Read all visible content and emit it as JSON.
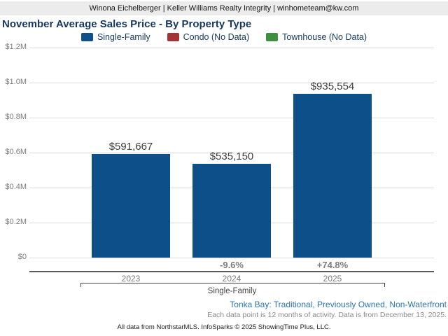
{
  "header": {
    "contact_line": "Winona Eichelberger | Keller Williams Realty Integrity | winhometeam@kw.com"
  },
  "title": "November Average Sales Price - By Property Type",
  "legend": [
    {
      "label": "Single-Family",
      "color": "#0d4f88"
    },
    {
      "label": "Condo (No Data)",
      "color": "#a23337"
    },
    {
      "label": "Townhouse (No Data)",
      "color": "#3f8f41"
    }
  ],
  "chart_data": {
    "type": "bar",
    "title": "November Average Sales Price - By Property Type",
    "categories": [
      "2023",
      "2024",
      "2025"
    ],
    "series": [
      {
        "name": "Single-Family",
        "values": [
          591667,
          535150,
          935554
        ],
        "color": "#0d4f88"
      },
      {
        "name": "Condo",
        "values": [
          null,
          null,
          null
        ],
        "color": "#a23337",
        "note": "No Data"
      },
      {
        "name": "Townhouse",
        "values": [
          null,
          null,
          null
        ],
        "color": "#3f8f41",
        "note": "No Data"
      }
    ],
    "bar_value_labels": [
      "$591,667",
      "$535,150",
      "$935,554"
    ],
    "change_labels": [
      "",
      "-9.6%",
      "+74.8%"
    ],
    "group_label": "Single-Family",
    "ylim": [
      0,
      1200000
    ],
    "yticks": [
      {
        "value": 0,
        "label": "$0"
      },
      {
        "value": 200000,
        "label": "$0.2M"
      },
      {
        "value": 400000,
        "label": "$0.4M"
      },
      {
        "value": 600000,
        "label": "$0.6M"
      },
      {
        "value": 800000,
        "label": "$0.8M"
      },
      {
        "value": 1000000,
        "label": "$1.0M"
      },
      {
        "value": 1200000,
        "label": "$1.2M"
      }
    ],
    "grid": true,
    "legend_position": "top"
  },
  "footer": {
    "filters_line": "Tonka Bay: Traditional, Previously Owned, Non-Waterfront",
    "data_note": "Each data point is 12 months of activity. Data is from December 13, 2025.",
    "attribution": "All data from NorthstarMLS. InfoSparks © 2025 ShowingTime Plus, LLC."
  }
}
